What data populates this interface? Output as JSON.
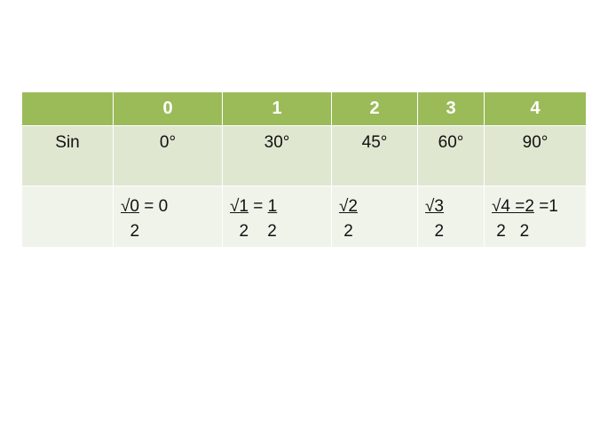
{
  "header": [
    "",
    "0",
    "1",
    "2",
    "3",
    "4"
  ],
  "angle_row": [
    "Sin",
    "0°",
    "30°",
    "45°",
    "60°",
    "90°"
  ],
  "value_row": [
    {
      "label": "",
      "num": [],
      "den": ""
    },
    {
      "num": [
        {
          "t": "√0",
          "u": true
        },
        {
          "t": " = 0",
          "u": false
        }
      ],
      "den": "  2"
    },
    {
      "num": [
        {
          "t": "√1",
          "u": true
        },
        {
          "t": " = ",
          "u": false
        },
        {
          "t": "1",
          "u": true
        }
      ],
      "den": "  2    2"
    },
    {
      "num": [
        {
          "t": "√2",
          "u": true
        }
      ],
      "den": " 2"
    },
    {
      "num": [
        {
          "t": "√3",
          "u": true
        }
      ],
      "den": "  2"
    },
    {
      "num": [
        {
          "t": "√4 =2",
          "u": true
        },
        {
          "t": " =1",
          "u": false
        }
      ],
      "den": " 2   2"
    }
  ],
  "colors": {
    "header": "#9bbb59",
    "row1": "#dfe7d1",
    "row2": "#eff3ea"
  }
}
